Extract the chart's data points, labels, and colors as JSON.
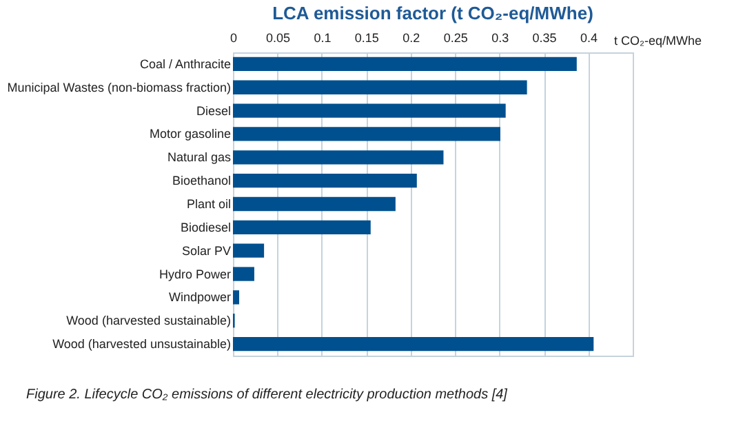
{
  "chart_data": {
    "type": "bar",
    "orientation": "horizontal",
    "title": "LCA emission factor (t CO₂-eq/MWhe)",
    "categories": [
      "Coal / Anthracite",
      "Municipal Wastes (non-biomass fraction)",
      "Diesel",
      "Motor gasoline",
      "Natural gas",
      "Bioethanol",
      "Plant oil",
      "Biodiesel",
      "Solar PV",
      "Hydro Power",
      "Windpower",
      "Wood (harvested sustainable)",
      "Wood (harvested unsustainable)"
    ],
    "values": [
      0.387,
      0.331,
      0.307,
      0.301,
      0.237,
      0.207,
      0.183,
      0.155,
      0.035,
      0.024,
      0.007,
      0.002,
      0.406
    ],
    "color": "#00508f",
    "xlim": [
      0,
      0.45
    ],
    "xticks": [
      0,
      0.05,
      0.1,
      0.15,
      0.2,
      0.25,
      0.3,
      0.35,
      0.4
    ],
    "xlabel": "t CO₂-eq/MWhe",
    "grid": "x",
    "annotations": [
      "Figure 2. Lifecycle CO₂ emissions of different electricity production methods [4]"
    ]
  }
}
